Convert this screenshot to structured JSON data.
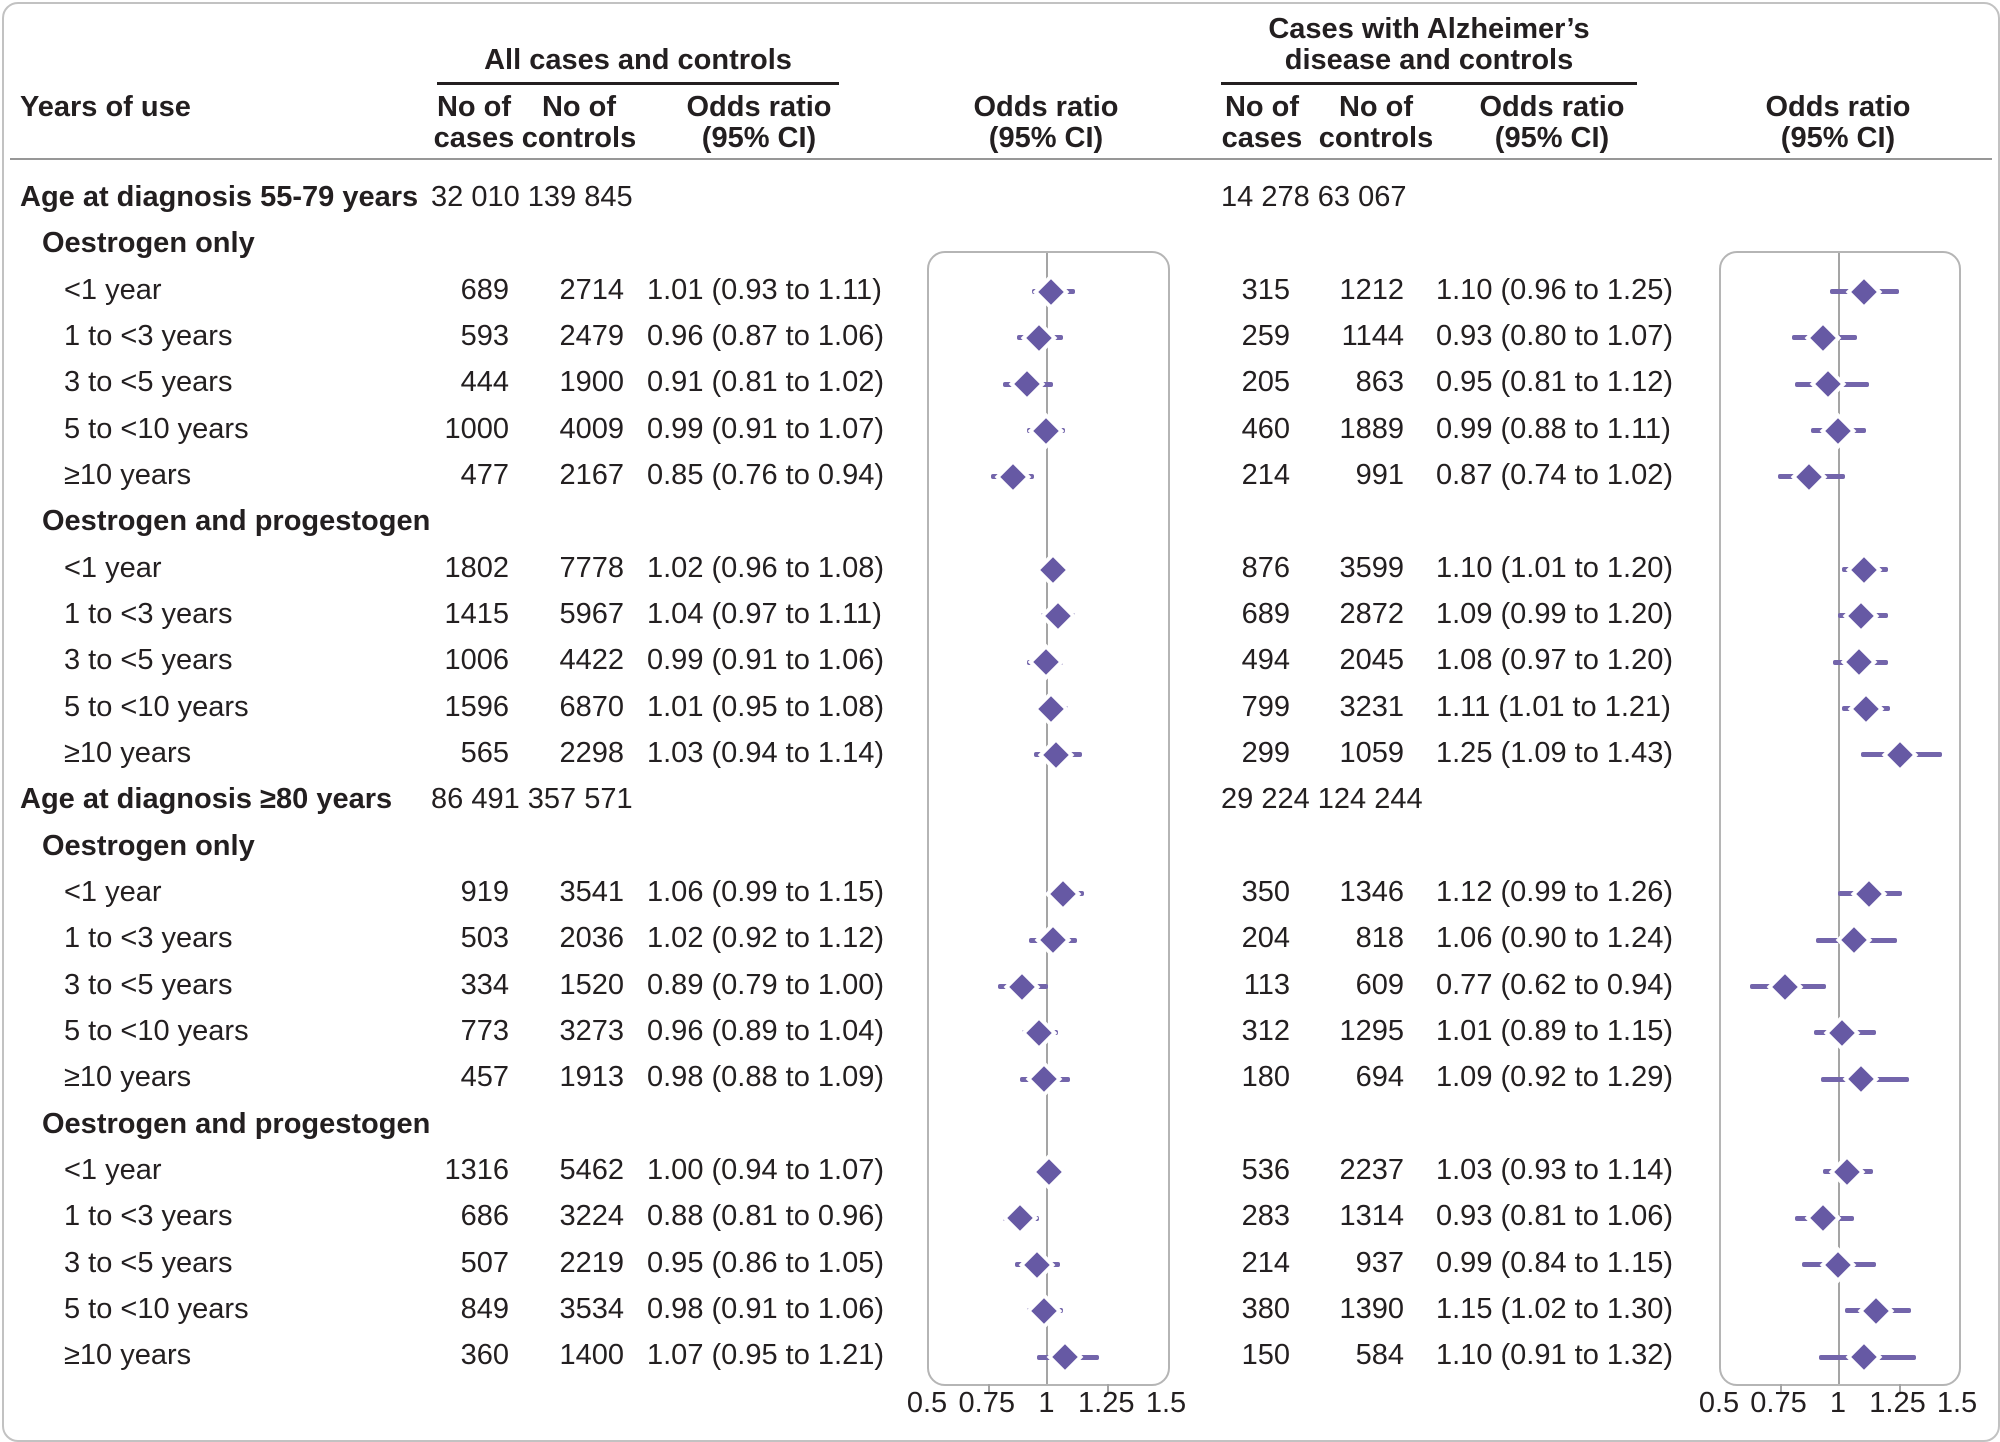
{
  "header": {
    "years_of_use": "Years of use",
    "left_panel_title": "All cases and controls",
    "right_panel_title_line1": "Cases with Alzheimer’s",
    "right_panel_title_line2": "disease and controls",
    "no_of": "No of",
    "cases": "cases",
    "controls": "controls",
    "odds_ratio_line1": "Odds ratio",
    "odds_ratio_line2": "(95% CI)"
  },
  "colors": {
    "diamond": "#6659a4",
    "ci_line": "#7365ab",
    "reference_line": "#a5a5a5",
    "plot_border": "#b5b5b5",
    "outer_border": "#c2c2c2",
    "text": "#231f20"
  },
  "chart_data": {
    "type": "forest",
    "xlim": [
      0.5,
      1.5
    ],
    "x_ticks": [
      "0.5",
      "0.75",
      "1",
      "1.25",
      "1.5"
    ],
    "reference_value": 1,
    "panels": [
      {
        "name": "All cases and controls"
      },
      {
        "name": "Cases with Alzheimer’s disease and controls"
      }
    ],
    "rows": [
      {
        "type": "group",
        "label": "Age at diagnosis 55-79 years",
        "left_total": "32 010 139 845",
        "right_total": "14 278  63 067"
      },
      {
        "type": "subgroup",
        "label": "Oestrogen only"
      },
      {
        "type": "item",
        "label": "<1 year",
        "left": {
          "cases": "689",
          "controls": "2714",
          "text": "1.01 (0.93 to 1.11)",
          "or": 1.01,
          "lo": 0.93,
          "hi": 1.11
        },
        "right": {
          "cases": "315",
          "controls": "1212",
          "text": "1.10 (0.96 to 1.25)",
          "or": 1.1,
          "lo": 0.96,
          "hi": 1.25
        }
      },
      {
        "type": "item",
        "label": "1 to <3 years",
        "left": {
          "cases": "593",
          "controls": "2479",
          "text": "0.96 (0.87 to 1.06)",
          "or": 0.96,
          "lo": 0.87,
          "hi": 1.06
        },
        "right": {
          "cases": "259",
          "controls": "1144",
          "text": "0.93 (0.80 to 1.07)",
          "or": 0.93,
          "lo": 0.8,
          "hi": 1.07
        }
      },
      {
        "type": "item",
        "label": "3 to <5 years",
        "left": {
          "cases": "444",
          "controls": "1900",
          "text": "0.91 (0.81 to 1.02)",
          "or": 0.91,
          "lo": 0.81,
          "hi": 1.02
        },
        "right": {
          "cases": "205",
          "controls": "863",
          "text": "0.95 (0.81 to 1.12)",
          "or": 0.95,
          "lo": 0.81,
          "hi": 1.12
        }
      },
      {
        "type": "item",
        "label": "5 to <10 years",
        "left": {
          "cases": "1000",
          "controls": "4009",
          "text": "0.99 (0.91 to 1.07)",
          "or": 0.99,
          "lo": 0.91,
          "hi": 1.07
        },
        "right": {
          "cases": "460",
          "controls": "1889",
          "text": "0.99 (0.88 to 1.11)",
          "or": 0.99,
          "lo": 0.88,
          "hi": 1.11
        }
      },
      {
        "type": "item",
        "label": "≥10 years",
        "left": {
          "cases": "477",
          "controls": "2167",
          "text": "0.85 (0.76 to 0.94)",
          "or": 0.85,
          "lo": 0.76,
          "hi": 0.94
        },
        "right": {
          "cases": "214",
          "controls": "991",
          "text": "0.87 (0.74 to 1.02)",
          "or": 0.87,
          "lo": 0.74,
          "hi": 1.02
        }
      },
      {
        "type": "subgroup",
        "label": "Oestrogen and progestogen"
      },
      {
        "type": "item",
        "label": "<1 year",
        "left": {
          "cases": "1802",
          "controls": "7778",
          "text": "1.02 (0.96 to 1.08)",
          "or": 1.02,
          "lo": 0.96,
          "hi": 1.08
        },
        "right": {
          "cases": "876",
          "controls": "3599",
          "text": "1.10 (1.01 to 1.20)",
          "or": 1.1,
          "lo": 1.01,
          "hi": 1.2
        }
      },
      {
        "type": "item",
        "label": "1 to <3 years",
        "left": {
          "cases": "1415",
          "controls": "5967",
          "text": "1.04 (0.97 to 1.11)",
          "or": 1.04,
          "lo": 0.97,
          "hi": 1.11
        },
        "right": {
          "cases": "689",
          "controls": "2872",
          "text": "1.09 (0.99 to 1.20)",
          "or": 1.09,
          "lo": 0.99,
          "hi": 1.2
        }
      },
      {
        "type": "item",
        "label": "3 to <5 years",
        "left": {
          "cases": "1006",
          "controls": "4422",
          "text": "0.99 (0.91 to 1.06)",
          "or": 0.99,
          "lo": 0.91,
          "hi": 1.06
        },
        "right": {
          "cases": "494",
          "controls": "2045",
          "text": "1.08 (0.97 to 1.20)",
          "or": 1.08,
          "lo": 0.97,
          "hi": 1.2
        }
      },
      {
        "type": "item",
        "label": "5 to <10 years",
        "left": {
          "cases": "1596",
          "controls": "6870",
          "text": "1.01 (0.95 to 1.08)",
          "or": 1.01,
          "lo": 0.95,
          "hi": 1.08
        },
        "right": {
          "cases": "799",
          "controls": "3231",
          "text": "1.11 (1.01 to 1.21)",
          "or": 1.11,
          "lo": 1.01,
          "hi": 1.21
        }
      },
      {
        "type": "item",
        "label": "≥10 years",
        "left": {
          "cases": "565",
          "controls": "2298",
          "text": "1.03 (0.94 to 1.14)",
          "or": 1.03,
          "lo": 0.94,
          "hi": 1.14
        },
        "right": {
          "cases": "299",
          "controls": "1059",
          "text": "1.25 (1.09 to 1.43)",
          "or": 1.25,
          "lo": 1.09,
          "hi": 1.43
        }
      },
      {
        "type": "group",
        "label": "Age at diagnosis ≥80 years",
        "left_total": "86 491 357 571",
        "right_total": "29 224 124 244"
      },
      {
        "type": "subgroup",
        "label": "Oestrogen only"
      },
      {
        "type": "item",
        "label": "<1 year",
        "left": {
          "cases": "919",
          "controls": "3541",
          "text": "1.06 (0.99 to 1.15)",
          "or": 1.06,
          "lo": 0.99,
          "hi": 1.15
        },
        "right": {
          "cases": "350",
          "controls": "1346",
          "text": "1.12 (0.99 to 1.26)",
          "or": 1.12,
          "lo": 0.99,
          "hi": 1.26
        }
      },
      {
        "type": "item",
        "label": "1 to <3 years",
        "left": {
          "cases": "503",
          "controls": "2036",
          "text": "1.02 (0.92 to 1.12)",
          "or": 1.02,
          "lo": 0.92,
          "hi": 1.12
        },
        "right": {
          "cases": "204",
          "controls": "818",
          "text": "1.06 (0.90 to 1.24)",
          "or": 1.06,
          "lo": 0.9,
          "hi": 1.24
        }
      },
      {
        "type": "item",
        "label": "3 to <5 years",
        "left": {
          "cases": "334",
          "controls": "1520",
          "text": "0.89 (0.79 to 1.00)",
          "or": 0.89,
          "lo": 0.79,
          "hi": 1.0
        },
        "right": {
          "cases": "113",
          "controls": "609",
          "text": "0.77 (0.62 to 0.94)",
          "or": 0.77,
          "lo": 0.62,
          "hi": 0.94
        }
      },
      {
        "type": "item",
        "label": "5 to <10 years",
        "left": {
          "cases": "773",
          "controls": "3273",
          "text": "0.96 (0.89 to 1.04)",
          "or": 0.96,
          "lo": 0.89,
          "hi": 1.04
        },
        "right": {
          "cases": "312",
          "controls": "1295",
          "text": "1.01 (0.89 to 1.15)",
          "or": 1.01,
          "lo": 0.89,
          "hi": 1.15
        }
      },
      {
        "type": "item",
        "label": "≥10 years",
        "left": {
          "cases": "457",
          "controls": "1913",
          "text": "0.98 (0.88 to 1.09)",
          "or": 0.98,
          "lo": 0.88,
          "hi": 1.09
        },
        "right": {
          "cases": "180",
          "controls": "694",
          "text": "1.09 (0.92 to 1.29)",
          "or": 1.09,
          "lo": 0.92,
          "hi": 1.29
        }
      },
      {
        "type": "subgroup",
        "label": "Oestrogen and progestogen"
      },
      {
        "type": "item",
        "label": "<1 year",
        "left": {
          "cases": "1316",
          "controls": "5462",
          "text": "1.00 (0.94 to 1.07)",
          "or": 1.0,
          "lo": 0.94,
          "hi": 1.07
        },
        "right": {
          "cases": "536",
          "controls": "2237",
          "text": "1.03 (0.93 to 1.14)",
          "or": 1.03,
          "lo": 0.93,
          "hi": 1.14
        }
      },
      {
        "type": "item",
        "label": "1 to <3 years",
        "left": {
          "cases": "686",
          "controls": "3224",
          "text": "0.88 (0.81 to 0.96)",
          "or": 0.88,
          "lo": 0.81,
          "hi": 0.96
        },
        "right": {
          "cases": "283",
          "controls": "1314",
          "text": "0.93 (0.81 to 1.06)",
          "or": 0.93,
          "lo": 0.81,
          "hi": 1.06
        }
      },
      {
        "type": "item",
        "label": "3 to <5 years",
        "left": {
          "cases": "507",
          "controls": "2219",
          "text": "0.95 (0.86 to 1.05)",
          "or": 0.95,
          "lo": 0.86,
          "hi": 1.05
        },
        "right": {
          "cases": "214",
          "controls": "937",
          "text": "0.99 (0.84 to 1.15)",
          "or": 0.99,
          "lo": 0.84,
          "hi": 1.15
        }
      },
      {
        "type": "item",
        "label": "5 to <10 years",
        "left": {
          "cases": "849",
          "controls": "3534",
          "text": "0.98 (0.91 to 1.06)",
          "or": 0.98,
          "lo": 0.91,
          "hi": 1.06
        },
        "right": {
          "cases": "380",
          "controls": "1390",
          "text": "1.15 (1.02 to 1.30)",
          "or": 1.15,
          "lo": 1.02,
          "hi": 1.3
        }
      },
      {
        "type": "item",
        "label": "≥10 years",
        "left": {
          "cases": "360",
          "controls": "1400",
          "text": "1.07 (0.95 to 1.21)",
          "or": 1.07,
          "lo": 0.95,
          "hi": 1.21
        },
        "right": {
          "cases": "150",
          "controls": "584",
          "text": "1.10 (0.91 to 1.32)",
          "or": 1.1,
          "lo": 0.91,
          "hi": 1.32
        }
      }
    ]
  }
}
